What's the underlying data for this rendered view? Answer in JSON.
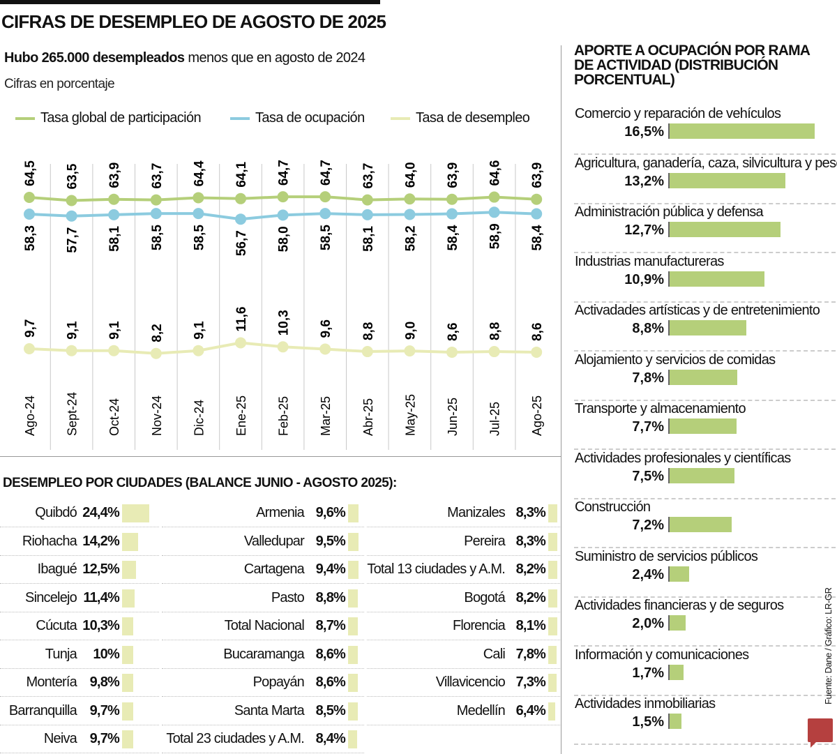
{
  "title": "CIFRAS DE DESEMPLEO DE AGOSTO DE 2025",
  "subtitle_bold": "Hubo 265.000 desempleados",
  "subtitle_rest": " menos que en agosto de 2024",
  "unit_note": "Cifras en porcentaje",
  "colors": {
    "participacion": "#b5cf7a",
    "ocupacion": "#8ccbdf",
    "desempleo": "#e8ebb5",
    "bars_ramas": "#b5cf7a",
    "bars_ciudades": "#e8ebb5",
    "logo": "#b5403f"
  },
  "chart_data": {
    "type": "line",
    "categories": [
      "Ago-24",
      "Sept-24",
      "Oct-24",
      "Nov-24",
      "Dic-24",
      "Ene-25",
      "Feb-25",
      "Mar-25",
      "Abr-25",
      "May-25",
      "Jun-25",
      "Jul-25",
      "Ago-25"
    ],
    "series": [
      {
        "name": "Tasa global de participación",
        "color": "#b5cf7a",
        "values": [
          64.5,
          63.5,
          63.9,
          63.7,
          64.4,
          64.1,
          64.7,
          64.7,
          63.7,
          64.0,
          63.9,
          64.6,
          63.9
        ],
        "labels": [
          "64,5",
          "63,5",
          "63,9",
          "63,7",
          "64,4",
          "64,1",
          "64,7",
          "64,7",
          "63,7",
          "64,0",
          "63,9",
          "64,6",
          "63,9"
        ]
      },
      {
        "name": "Tasa de ocupación",
        "color": "#8ccbdf",
        "values": [
          58.3,
          57.7,
          58.1,
          58.5,
          58.5,
          56.7,
          58.0,
          58.5,
          58.1,
          58.2,
          58.4,
          58.9,
          58.4
        ],
        "labels": [
          "58,3",
          "57,7",
          "58,1",
          "58,5",
          "58,5",
          "56,7",
          "58,0",
          "58,5",
          "58,1",
          "58,2",
          "58,4",
          "58,9",
          "58,4"
        ]
      },
      {
        "name": "Tasa de desempleo",
        "color": "#e8ebb5",
        "values": [
          9.7,
          9.1,
          9.1,
          8.2,
          9.1,
          11.6,
          10.3,
          9.6,
          8.8,
          9.0,
          8.6,
          8.8,
          8.6
        ],
        "labels": [
          "9,7",
          "9,1",
          "9,1",
          "8,2",
          "9,1",
          "11,6",
          "10,3",
          "9,6",
          "8,8",
          "9,0",
          "8,6",
          "8,8",
          "8,6"
        ]
      }
    ],
    "grid": "vertical",
    "legend": "top"
  },
  "ciudades": {
    "title": "DESEMPLEO POR CIUDADES  (BALANCE JUNIO - AGOSTO 2025):",
    "columns": [
      [
        {
          "name": "Quibdó",
          "label": "24,4%",
          "value": 24.4
        },
        {
          "name": "Riohacha",
          "label": "14,2%",
          "value": 14.2
        },
        {
          "name": "Ibagué",
          "label": "12,5%",
          "value": 12.5
        },
        {
          "name": "Sincelejo",
          "label": "11,4%",
          "value": 11.4
        },
        {
          "name": "Cúcuta",
          "label": "10,3%",
          "value": 10.3
        },
        {
          "name": "Tunja",
          "label": "10%",
          "value": 10
        },
        {
          "name": "Montería",
          "label": "9,8%",
          "value": 9.8
        },
        {
          "name": "Barranquilla",
          "label": "9,7%",
          "value": 9.7
        },
        {
          "name": "Neiva",
          "label": "9,7%",
          "value": 9.7
        }
      ],
      [
        {
          "name": "Armenia",
          "label": "9,6%",
          "value": 9.6
        },
        {
          "name": "Valledupar",
          "label": "9,5%",
          "value": 9.5
        },
        {
          "name": "Cartagena",
          "label": "9,4%",
          "value": 9.4
        },
        {
          "name": "Pasto",
          "label": "8,8%",
          "value": 8.8
        },
        {
          "name": "Total Nacional",
          "label": "8,7%",
          "value": 8.7
        },
        {
          "name": "Bucaramanga",
          "label": "8,6%",
          "value": 8.6
        },
        {
          "name": "Popayán",
          "label": "8,6%",
          "value": 8.6
        },
        {
          "name": "Santa Marta",
          "label": "8,5%",
          "value": 8.5
        },
        {
          "name": "Total 23 ciudades y A.M.",
          "label": "8,4%",
          "value": 8.4
        }
      ],
      [
        {
          "name": "Manizales",
          "label": "8,3%",
          "value": 8.3
        },
        {
          "name": "Pereira",
          "label": "8,3%",
          "value": 8.3
        },
        {
          "name": "Total 13 ciudades y A.M.",
          "label": "8,2%",
          "value": 8.2
        },
        {
          "name": "Bogotá",
          "label": "8,2%",
          "value": 8.2
        },
        {
          "name": "Florencia",
          "label": "8,1%",
          "value": 8.1
        },
        {
          "name": "Cali",
          "label": "7,8%",
          "value": 7.8
        },
        {
          "name": "Villavicencio",
          "label": "7,3%",
          "value": 7.3
        },
        {
          "name": "Medellín",
          "label": "6,4%",
          "value": 6.4
        }
      ]
    ]
  },
  "ramas": {
    "title_line1": "APORTE A OCUPACIÓN POR RAMA",
    "title_line2": "DE ACTIVIDAD (DISTRIBUCIÓN PORCENTUAL)",
    "items": [
      {
        "name": "Comercio y reparación de vehículos",
        "label": "16,5%",
        "value": 16.5
      },
      {
        "name": "Agricultura, ganadería, caza, silvicultura y pesca",
        "label": "13,2%",
        "value": 13.2
      },
      {
        "name": "Administración pública y defensa",
        "label": "12,7%",
        "value": 12.7
      },
      {
        "name": "Industrias manufactureras",
        "label": "10,9%",
        "value": 10.9
      },
      {
        "name": "Activadades artísticas y de entretenimiento",
        "label": "8,8%",
        "value": 8.8
      },
      {
        "name": "Alojamiento y servicios de comidas",
        "label": "7,8%",
        "value": 7.8
      },
      {
        "name": "Transporte y almacenamiento",
        "label": "7,7%",
        "value": 7.7
      },
      {
        "name": "Actividades profesionales y científicas",
        "label": "7,5%",
        "value": 7.5
      },
      {
        "name": "Construcción",
        "label": "7,2%",
        "value": 7.2
      },
      {
        "name": "Suministro de servicios públicos",
        "label": "2,4%",
        "value": 2.4
      },
      {
        "name": "Actividades financieras y de seguros",
        "label": "2,0%",
        "value": 2.0
      },
      {
        "name": "Información y comunicaciones",
        "label": "1,7%",
        "value": 1.7
      },
      {
        "name": "Actividades inmobiliarias",
        "label": "1,5%",
        "value": 1.5
      }
    ]
  },
  "source": "Fuente: Dane / Gráfico: LR-GR",
  "logo": "LR"
}
